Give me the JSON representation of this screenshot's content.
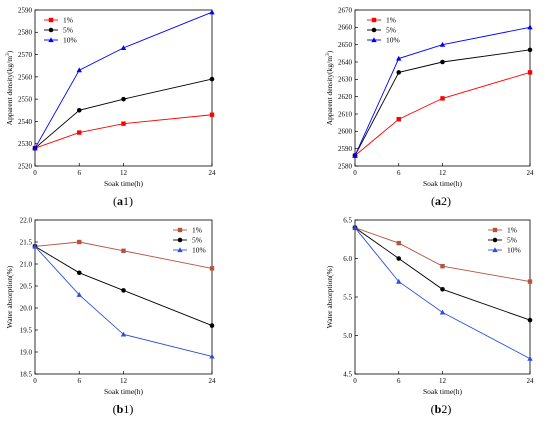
{
  "chart_data": [
    {
      "type": "line",
      "panel_label": "a1",
      "panel_label_parts": {
        "letter": "a",
        "number": "1"
      },
      "xlabel": "Soak time(h)",
      "ylabel": "Apparent density(kg/m",
      "ylabel_sup": "3",
      "ylabel_close": ")",
      "x": [
        0,
        6,
        12,
        24
      ],
      "xlim": [
        0,
        24
      ],
      "xticks": [
        0,
        6,
        12,
        24
      ],
      "ylim": [
        2520,
        2590
      ],
      "yticks": [
        2520,
        2530,
        2540,
        2550,
        2560,
        2570,
        2580,
        2590
      ],
      "legend_position": "top-left",
      "series": [
        {
          "name": "1%",
          "values": [
            2528,
            2535,
            2539,
            2543
          ],
          "color": "#ff0000",
          "marker": "square"
        },
        {
          "name": "5%",
          "values": [
            2528,
            2545,
            2550,
            2559
          ],
          "color": "#000000",
          "marker": "circle"
        },
        {
          "name": "10%",
          "values": [
            2528,
            2563,
            2573,
            2589
          ],
          "color": "#0000ff",
          "marker": "triangle"
        }
      ]
    },
    {
      "type": "line",
      "panel_label": "a2",
      "panel_label_parts": {
        "letter": "a",
        "number": "2"
      },
      "xlabel": "Soak time(h)",
      "ylabel": "Apparent density(kg/m",
      "ylabel_sup": "3",
      "ylabel_close": ")",
      "x": [
        0,
        6,
        12,
        24
      ],
      "xlim": [
        0,
        24
      ],
      "xticks": [
        0,
        6,
        12,
        24
      ],
      "ylim": [
        2580,
        2670
      ],
      "yticks": [
        2580,
        2590,
        2600,
        2610,
        2620,
        2630,
        2640,
        2650,
        2660,
        2670
      ],
      "legend_position": "top-left",
      "series": [
        {
          "name": "1%",
          "values": [
            2586,
            2607,
            2619,
            2634
          ],
          "color": "#ff0000",
          "marker": "square"
        },
        {
          "name": "5%",
          "values": [
            2586,
            2634,
            2640,
            2647
          ],
          "color": "#000000",
          "marker": "circle"
        },
        {
          "name": "10%",
          "values": [
            2586,
            2642,
            2650,
            2660
          ],
          "color": "#0000ff",
          "marker": "triangle"
        }
      ]
    },
    {
      "type": "line",
      "panel_label": "b1",
      "panel_label_parts": {
        "letter": "b",
        "number": "1"
      },
      "xlabel": "Soak time(h)",
      "ylabel": "Water absorption(%)",
      "ylabel_sup": "",
      "ylabel_close": "",
      "x": [
        0,
        6,
        12,
        24
      ],
      "xlim": [
        0,
        24
      ],
      "xticks": [
        0,
        6,
        12,
        24
      ],
      "ylim": [
        18.5,
        22.0
      ],
      "yticks": [
        "18.5",
        "19.0",
        "19.5",
        "20.0",
        "20.5",
        "21.0",
        "21.5",
        "22.0"
      ],
      "legend_position": "top-right",
      "series": [
        {
          "name": "1%",
          "values": [
            21.4,
            21.5,
            21.3,
            20.9
          ],
          "color": "#b5533c",
          "marker": "square"
        },
        {
          "name": "5%",
          "values": [
            21.4,
            20.8,
            20.4,
            19.6
          ],
          "color": "#000000",
          "marker": "circle"
        },
        {
          "name": "10%",
          "values": [
            21.4,
            20.3,
            19.4,
            18.9
          ],
          "color": "#2b4fe0",
          "marker": "triangle"
        }
      ]
    },
    {
      "type": "line",
      "panel_label": "b2",
      "panel_label_parts": {
        "letter": "b",
        "number": "2"
      },
      "xlabel": "Soak time(h)",
      "ylabel": "Water absorption(%)",
      "ylabel_sup": "",
      "ylabel_close": "",
      "x": [
        0,
        6,
        12,
        24
      ],
      "xlim": [
        0,
        24
      ],
      "xticks": [
        0,
        6,
        12,
        24
      ],
      "ylim": [
        4.5,
        6.5
      ],
      "yticks": [
        "4.5",
        "5.0",
        "5.5",
        "6.0",
        "6.5"
      ],
      "legend_position": "top-right",
      "series": [
        {
          "name": "1%",
          "values": [
            6.4,
            6.2,
            5.9,
            5.7
          ],
          "color": "#b5533c",
          "marker": "square"
        },
        {
          "name": "5%",
          "values": [
            6.4,
            6.0,
            5.6,
            5.2
          ],
          "color": "#000000",
          "marker": "circle"
        },
        {
          "name": "10%",
          "values": [
            6.4,
            5.7,
            5.3,
            4.7
          ],
          "color": "#2b4fe0",
          "marker": "triangle"
        }
      ]
    }
  ]
}
